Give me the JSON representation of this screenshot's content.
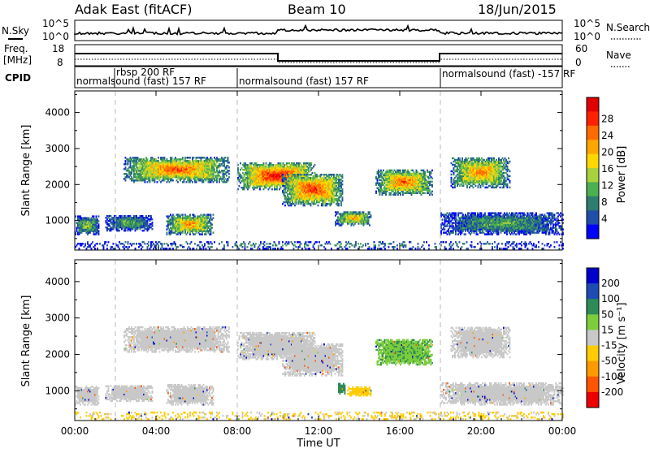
{
  "header": {
    "station": "Adak East (fitACF)",
    "beam": "Beam 10",
    "date": "18/Jun/2015"
  },
  "noise_panel": {
    "left_label": "N.Sky",
    "right_label": "N.Search",
    "left_ticks": [
      "10^5",
      "10^0"
    ],
    "right_ticks": [
      "10^5",
      "10^0"
    ]
  },
  "freq_panel": {
    "left_label_1": "Freq.",
    "left_label_2": "[MHz]",
    "right_label": "Nave",
    "left_ticks": [
      "18",
      "8"
    ],
    "right_ticks": [
      "60",
      "0"
    ]
  },
  "cpid_panel": {
    "label": "CPID",
    "segments": [
      {
        "text": "normalsound (fast) 157 RF",
        "start": 0.0
      },
      {
        "text": "rbsp 200 RF",
        "start": 2.0
      },
      {
        "text": "normalsound (fast) 157 RF",
        "start": 8.0
      },
      {
        "text": "normalsound (fast) -157 RF",
        "start": 18.0
      }
    ]
  },
  "colors": {
    "power_scale": [
      "#0000ff",
      "#1f4fa8",
      "#2e7d6e",
      "#4caf50",
      "#a8d13c",
      "#ffd700",
      "#ffa500",
      "#ff6a00",
      "#ff2200",
      "#e00000"
    ],
    "velocity_scale": [
      "#0000cc",
      "#1e4bb4",
      "#2e8b57",
      "#7ccd3c",
      "#c8c8c8",
      "#ffcc00",
      "#ff9900",
      "#ff5500",
      "#ee0000"
    ]
  },
  "chart_data": [
    {
      "type": "heatmap",
      "name": "power",
      "xlabel": "Time UT",
      "ylabel": "Slant Range [km]",
      "xlim": [
        0,
        24
      ],
      "ylim": [
        180,
        4600
      ],
      "x_ticks": [
        "00:00",
        "04:00",
        "08:00",
        "12:00",
        "16:00",
        "20:00",
        "00:00"
      ],
      "y_ticks": [
        1000,
        2000,
        3000,
        4000
      ],
      "colorbar_label": "Power [dB]",
      "colorbar_ticks": [
        "4",
        "8",
        "12",
        "16",
        "20",
        "24",
        "28"
      ],
      "mode_change_lines": [
        2.0,
        8.0,
        18.0
      ],
      "features": [
        {
          "t0": 0.0,
          "t1": 1.2,
          "r0": 600,
          "r1": 1100,
          "level": 0.3
        },
        {
          "t0": 1.5,
          "t1": 3.8,
          "r0": 700,
          "r1": 1150,
          "level": 0.25
        },
        {
          "t0": 2.4,
          "t1": 7.6,
          "r0": 2050,
          "r1": 2750,
          "level": 0.55
        },
        {
          "t0": 4.5,
          "t1": 6.8,
          "r0": 600,
          "r1": 1150,
          "level": 0.5
        },
        {
          "t0": 8.0,
          "t1": 11.8,
          "r0": 1850,
          "r1": 2600,
          "level": 0.65
        },
        {
          "t0": 10.2,
          "t1": 13.2,
          "r0": 1400,
          "r1": 2300,
          "level": 0.6
        },
        {
          "t0": 12.8,
          "t1": 14.6,
          "r0": 850,
          "r1": 1250,
          "level": 0.45
        },
        {
          "t0": 14.8,
          "t1": 17.6,
          "r0": 1700,
          "r1": 2400,
          "level": 0.55
        },
        {
          "t0": 18.5,
          "t1": 21.4,
          "r0": 1900,
          "r1": 2750,
          "level": 0.5
        },
        {
          "t0": 18.0,
          "t1": 24.0,
          "r0": 600,
          "r1": 1200,
          "level": 0.25
        },
        {
          "t0": 0.0,
          "t1": 24.0,
          "r0": 200,
          "r1": 400,
          "level": 0.2
        }
      ]
    },
    {
      "type": "heatmap",
      "name": "velocity",
      "xlabel": "Time UT",
      "ylabel": "Slant Range [km]",
      "xlim": [
        0,
        24
      ],
      "ylim": [
        180,
        4600
      ],
      "x_ticks": [
        "00:00",
        "04:00",
        "08:00",
        "12:00",
        "16:00",
        "20:00",
        "00:00"
      ],
      "y_ticks": [
        1000,
        2000,
        3000,
        4000
      ],
      "colorbar_label": "Velocity [m s⁻¹]",
      "colorbar_ticks": [
        "200",
        "100",
        "50",
        "15",
        "-15",
        "-50",
        "-100",
        "-200"
      ],
      "mode_change_lines": [
        2.0,
        8.0,
        18.0
      ],
      "features": [
        {
          "t0": 0.0,
          "t1": 1.2,
          "r0": 600,
          "r1": 1100,
          "vel": 0
        },
        {
          "t0": 1.5,
          "t1": 3.8,
          "r0": 700,
          "r1": 1150,
          "vel": 0
        },
        {
          "t0": 2.4,
          "t1": 7.6,
          "r0": 2050,
          "r1": 2750,
          "vel": 0
        },
        {
          "t0": 4.5,
          "t1": 6.8,
          "r0": 600,
          "r1": 1150,
          "vel": 0
        },
        {
          "t0": 8.0,
          "t1": 11.8,
          "r0": 1850,
          "r1": 2600,
          "vel": 0
        },
        {
          "t0": 10.2,
          "t1": 13.2,
          "r0": 1400,
          "r1": 2300,
          "vel": 0
        },
        {
          "t0": 12.9,
          "t1": 13.3,
          "r0": 900,
          "r1": 1200,
          "vel": 40
        },
        {
          "t0": 13.4,
          "t1": 14.6,
          "r0": 850,
          "r1": 1100,
          "vel": -30
        },
        {
          "t0": 14.8,
          "t1": 17.6,
          "r0": 1700,
          "r1": 2400,
          "vel": 20
        },
        {
          "t0": 18.5,
          "t1": 21.4,
          "r0": 1900,
          "r1": 2750,
          "vel": 0
        },
        {
          "t0": 18.0,
          "t1": 24.0,
          "r0": 600,
          "r1": 1200,
          "vel": 0
        },
        {
          "t0": 0.0,
          "t1": 24.0,
          "r0": 200,
          "r1": 400,
          "vel": -20
        }
      ]
    }
  ]
}
